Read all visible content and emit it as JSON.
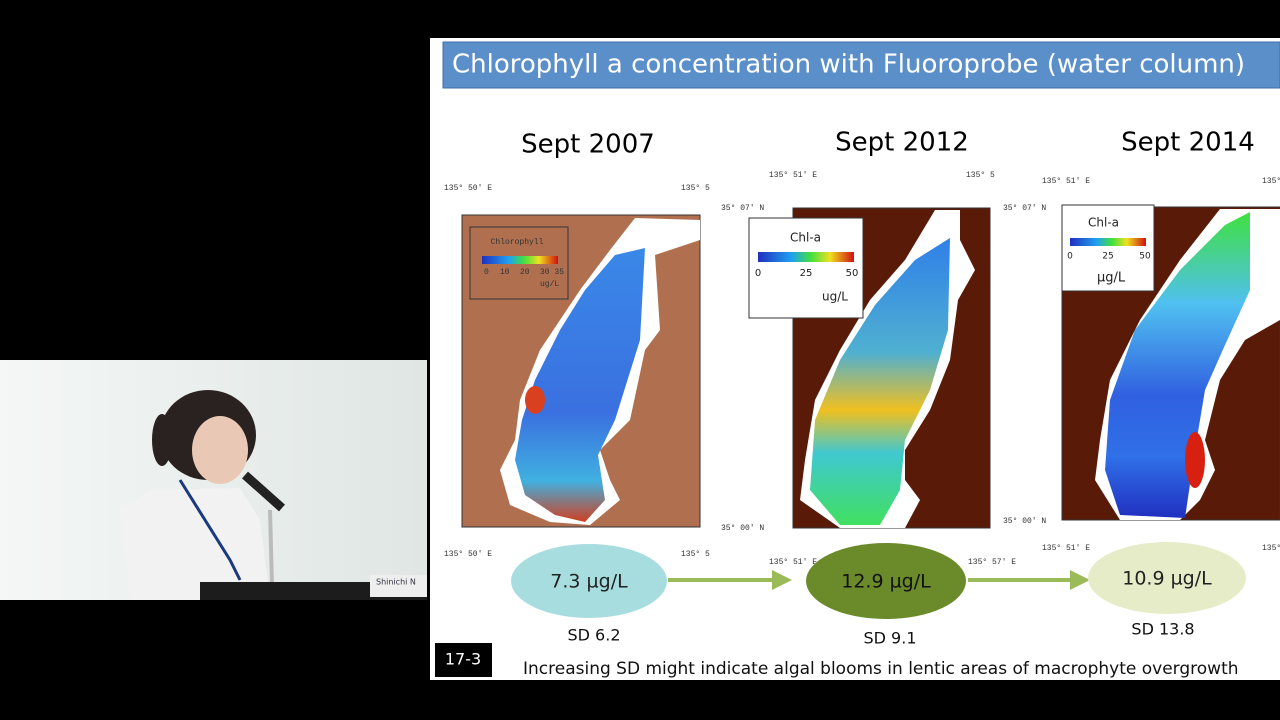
{
  "slide": {
    "title": "Chlorophyll a concentration with Fluoroprobe (water column)",
    "panels": [
      {
        "label": "Sept 2007",
        "legend_title": "Chlorophyll",
        "legend_ticks": [
          "0",
          "10",
          "20",
          "30 35"
        ],
        "legend_unit": "ug/L",
        "coord_top_left": "135° 50′ E",
        "coord_top_right": "135° 5",
        "coord_bottom_left": "135° 50′ E",
        "coord_bottom_right": "135° 5",
        "mean": "7.3 µg/L",
        "sd": "SD 6.2"
      },
      {
        "label": "Sept 2012",
        "legend_title": "Chl-a",
        "legend_ticks": [
          "0",
          "25",
          "50"
        ],
        "legend_unit": "ug/L",
        "coord_top_left": "135° 51′ E",
        "coord_top_right": "135° 5",
        "coord_bottom_left": "135° 51′ E",
        "coord_bottom_right": "135° 57′ E",
        "lat_top": "35° 07′ N",
        "lat_bottom": "35° 00′ N",
        "mean": "12.9 µg/L",
        "sd": "SD 9.1"
      },
      {
        "label": "Sept 2014",
        "legend_title": "Chl-a",
        "legend_ticks": [
          "0",
          "25",
          "50"
        ],
        "legend_unit": "µg/L",
        "coord_top_left": "135° 51′ E",
        "coord_top_right": "135°",
        "coord_bottom_left": "135° 51′ E",
        "coord_bottom_right": "135°",
        "lat_top": "35° 07′ N",
        "lat_bottom": "35° 00′ N",
        "mean": "10.9 µg/L",
        "sd": "SD 13.8"
      }
    ],
    "footnote": "Increasing SD might indicate algal blooms in lentic areas of macrophyte overgrowth",
    "slide_number": "17-3"
  },
  "speaker": {
    "nameplate": "Shinichi N"
  }
}
